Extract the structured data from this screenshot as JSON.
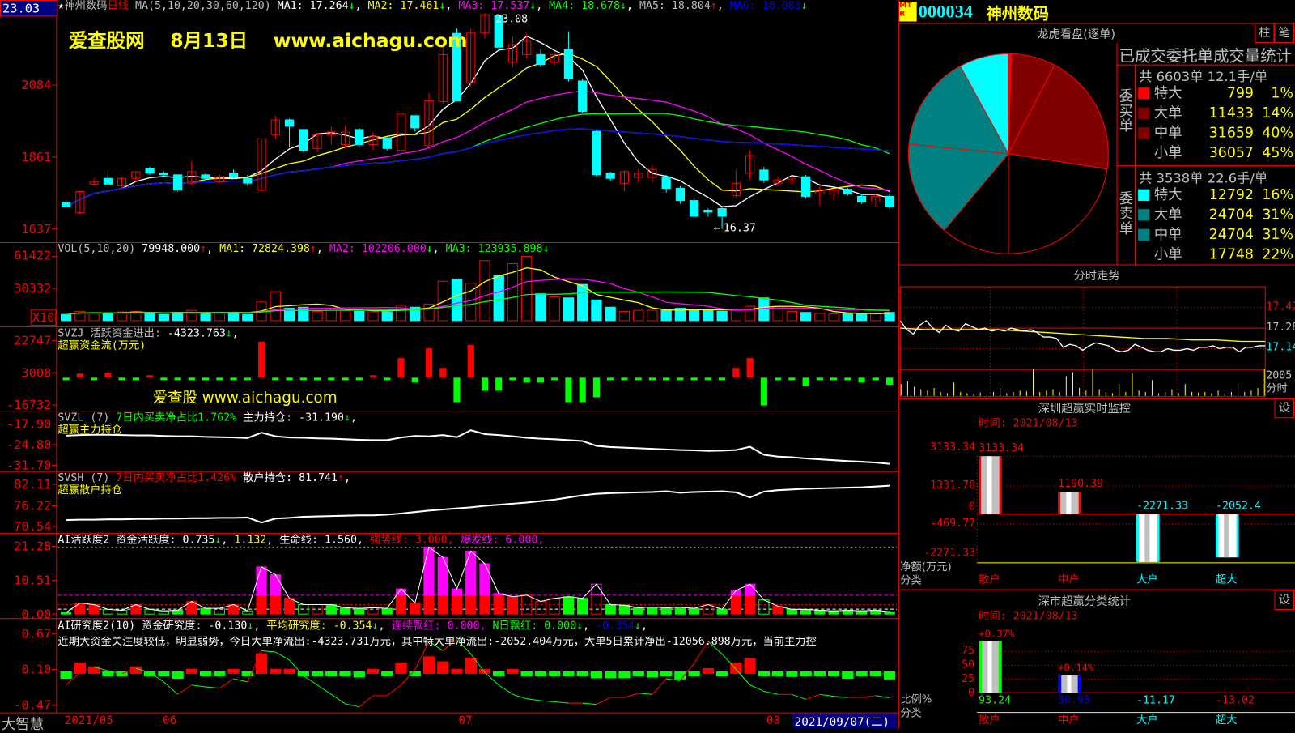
{
  "stock": {
    "code": "000034",
    "name": "神州数码",
    "logo": "MTR",
    "price_box": "23.03"
  },
  "main_header": [
    {
      "t": "★",
      "c": "#fff"
    },
    {
      "t": "神州数码",
      "c": "#c0c0c0"
    },
    {
      "t": "日线",
      "c": "#f00"
    },
    {
      "t": " MA(5,10,20,30,60,120) ",
      "c": "#c0c0c0"
    },
    {
      "t": "MA1: 17.264",
      "c": "#fff"
    },
    {
      "t": "↓",
      "c": "#0f0"
    },
    {
      "t": ", ",
      "c": "#fff"
    },
    {
      "t": "MA2: 17.461",
      "c": "#ff0"
    },
    {
      "t": "↓",
      "c": "#0f0"
    },
    {
      "t": ", ",
      "c": "#fff"
    },
    {
      "t": "MA3: 17.537",
      "c": "#f0f"
    },
    {
      "t": "↓",
      "c": "#0f0"
    },
    {
      "t": ", ",
      "c": "#fff"
    },
    {
      "t": "MA4: 18.678",
      "c": "#0f0"
    },
    {
      "t": "↓",
      "c": "#0f0"
    },
    {
      "t": ", ",
      "c": "#fff"
    },
    {
      "t": "MA5: 18.804",
      "c": "#c0c0c0"
    },
    {
      "t": "↑",
      "c": "#f00"
    },
    {
      "t": ", ",
      "c": "#fff"
    },
    {
      "t": "MA6: 18.083",
      "c": "#00f"
    },
    {
      "t": "↓",
      "c": "#0f0"
    }
  ],
  "watermark_top": "爱查股网　 8月13日　 www.aichagu.com",
  "watermark_mid": "爱查股 www.aichagu.com",
  "price_axis": [
    "2084",
    "1861",
    "1637"
  ],
  "high_label": "23.08",
  "low_label": "16.37",
  "candles": [
    [
      17.2,
      17.05,
      17.25,
      17.05
    ],
    [
      16.87,
      17.53,
      17.56,
      16.82
    ],
    [
      17.76,
      17.84,
      17.95,
      17.7
    ],
    [
      17.94,
      17.76,
      18.1,
      17.72
    ],
    [
      17.71,
      17.94,
      17.99,
      17.65
    ],
    [
      17.94,
      18.15,
      18.15,
      17.8
    ],
    [
      18.25,
      18.1,
      18.3,
      18.05
    ],
    [
      18.1,
      18.05,
      18.15,
      17.99
    ],
    [
      18.05,
      17.58,
      18.05,
      17.53
    ],
    [
      17.79,
      18.15,
      18.48,
      17.74
    ],
    [
      18.05,
      17.94,
      18.1,
      17.89
    ],
    [
      17.84,
      17.99,
      18.05,
      17.79
    ],
    [
      18.1,
      17.99,
      18.22,
      17.94
    ],
    [
      17.94,
      17.79,
      18.05,
      17.71
    ],
    [
      17.58,
      19.17,
      19.17,
      17.53
    ],
    [
      19.3,
      19.76,
      19.89,
      19.17
    ],
    [
      19.76,
      19.56,
      19.8,
      18.9
    ],
    [
      19.46,
      18.81,
      19.46,
      18.76
    ],
    [
      18.87,
      19.3,
      19.3,
      18.76
    ],
    [
      19.3,
      19.38,
      19.56,
      18.99
    ],
    [
      18.99,
      19.38,
      19.59,
      18.87
    ],
    [
      19.46,
      18.99,
      19.51,
      18.9
    ],
    [
      18.99,
      19.25,
      19.38,
      18.81
    ],
    [
      19.2,
      18.87,
      19.2,
      18.81
    ],
    [
      18.81,
      19.94,
      20.02,
      18.81
    ],
    [
      19.89,
      19.51,
      19.89,
      19.4
    ],
    [
      18.96,
      20.35,
      20.6,
      18.9
    ],
    [
      20.33,
      21.79,
      22.1,
      20.25
    ],
    [
      22.45,
      20.35,
      22.6,
      20.33
    ],
    [
      20.92,
      22.46,
      22.6,
      20.8
    ],
    [
      22.46,
      23.03,
      23.08,
      22.3
    ],
    [
      23.0,
      22.02,
      23.05,
      21.95
    ],
    [
      21.56,
      22.1,
      22.35,
      21.4
    ],
    [
      21.79,
      22.2,
      22.45,
      21.7
    ],
    [
      21.79,
      21.48,
      21.95,
      21.4
    ],
    [
      21.56,
      21.79,
      21.9,
      21.45
    ],
    [
      21.95,
      21.05,
      22.5,
      20.95
    ],
    [
      20.97,
      20.02,
      21.05,
      19.98
    ],
    [
      19.4,
      18.05,
      19.45,
      18.0
    ],
    [
      18.1,
      17.94,
      18.15,
      17.85
    ],
    [
      17.79,
      18.15,
      18.2,
      17.53
    ],
    [
      17.97,
      18.1,
      18.22,
      17.8
    ],
    [
      17.97,
      18.22,
      18.35,
      17.8
    ],
    [
      17.99,
      17.63,
      18.05,
      17.5
    ],
    [
      17.63,
      17.25,
      17.7,
      17.15
    ],
    [
      17.25,
      16.76,
      17.3,
      16.7
    ],
    [
      16.95,
      16.89,
      17.0,
      16.75
    ],
    [
      17.0,
      16.76,
      17.05,
      16.37
    ],
    [
      17.4,
      17.79,
      18.2,
      17.35
    ],
    [
      18.1,
      18.65,
      18.8,
      17.9
    ],
    [
      18.2,
      17.89,
      18.3,
      17.8
    ],
    [
      17.79,
      17.89,
      18.0,
      17.7
    ],
    [
      17.85,
      17.92,
      18.0,
      17.75
    ],
    [
      17.99,
      17.38,
      18.05,
      17.3
    ],
    [
      17.45,
      17.58,
      17.7,
      17.1
    ],
    [
      17.45,
      17.58,
      17.6,
      17.25
    ],
    [
      17.6,
      17.45,
      17.65,
      17.4
    ],
    [
      17.38,
      17.2,
      17.45,
      17.15
    ],
    [
      17.2,
      17.38,
      17.45,
      17.05
    ],
    [
      17.38,
      17.05,
      17.45,
      17.0
    ]
  ],
  "colors": {
    "up": "#ff0000",
    "down": "#00ffff",
    "ma": [
      "#ffffff",
      "#ffff00",
      "#ff00ff",
      "#00ff00",
      "#c0c0c0",
      "#0000ff"
    ]
  },
  "vol_header": [
    {
      "t": "VOL(5,10,20) ",
      "c": "#c0c0c0"
    },
    {
      "t": "79948.000",
      "c": "#fff"
    },
    {
      "t": "↑",
      "c": "#f00"
    },
    {
      "t": ", ",
      "c": "#fff"
    },
    {
      "t": "MA1: 72824.398",
      "c": "#ff0"
    },
    {
      "t": "↑",
      "c": "#f00"
    },
    {
      "t": ", ",
      "c": "#fff"
    },
    {
      "t": "MA2: 102206.000",
      "c": "#f0f"
    },
    {
      "t": "↓",
      "c": "#0f0"
    },
    {
      "t": ", ",
      "c": "#fff"
    },
    {
      "t": "MA3: 123935.898",
      "c": "#0f0"
    },
    {
      "t": "↓",
      "c": "#0f0"
    }
  ],
  "vol_axis": [
    "61422",
    "30332"
  ],
  "vol_unit": "X10",
  "volume": [
    6000,
    9000,
    8000,
    7000,
    8500,
    9000,
    7500,
    6000,
    8000,
    10000,
    6500,
    8000,
    8000,
    6000,
    18000,
    28000,
    12000,
    13000,
    9000,
    12000,
    9500,
    9000,
    8500,
    8500,
    15000,
    13000,
    16000,
    38000,
    40000,
    36000,
    58000,
    44000,
    55000,
    62000,
    26000,
    23000,
    22000,
    35000,
    20000,
    13000,
    9000,
    10000,
    10000,
    10000,
    12000,
    11000,
    10000,
    9000,
    10000,
    14000,
    22000,
    14000,
    9000,
    8000,
    7000,
    6500,
    7000,
    7000,
    6500,
    7994.8
  ],
  "svzj": {
    "header": [
      {
        "t": "SVZJ  活跃资金进出: ",
        "c": "#c0c0c0"
      },
      {
        "t": "-4323.763",
        "c": "#fff"
      },
      {
        "t": "↓",
        "c": "#0f0"
      },
      {
        "t": ",",
        "c": "#fff"
      }
    ],
    "sub": "超赢资金流(万元)",
    "axis": [
      "22747",
      "3008",
      "-16732"
    ],
    "values": [
      -500,
      2500,
      -800,
      1500,
      -600,
      -500,
      600,
      -700,
      -500,
      -400,
      -900,
      -600,
      -500,
      -800,
      22000,
      -700,
      -600,
      -800,
      -500,
      -700,
      -900,
      -1000,
      800,
      -800,
      12000,
      -3000,
      18000,
      6000,
      -15000,
      20000,
      -8000,
      -8000,
      -1200,
      -1500,
      -1300,
      -900,
      -15000,
      -15000,
      -12000,
      -1000,
      -800,
      -900,
      -600,
      -700,
      -800,
      -900,
      -700,
      -1000,
      6000,
      12000,
      -17000,
      -900,
      -700,
      -5000,
      -600,
      -800,
      -900,
      -1500,
      -700,
      -4323.763
    ]
  },
  "svzl": {
    "header": [
      {
        "t": "SVZL (7) ",
        "c": "#c0c0c0"
      },
      {
        "t": "7日内买卖净占比1.762%",
        "c": "#0f0"
      },
      {
        "t": " 主力持仓: -31.190",
        "c": "#fff"
      },
      {
        "t": "↓",
        "c": "#0f0"
      },
      {
        "t": ",",
        "c": "#fff"
      }
    ],
    "sub": "超赢主力持仓",
    "axis": [
      "-17.90",
      "-24.80",
      "-31.70"
    ],
    "values": [
      -21.8,
      -21.6,
      -21.5,
      -21.5,
      -21.6,
      -21.7,
      -21.7,
      -21.9,
      -22.0,
      -22.0,
      -22.2,
      -22.3,
      -22.4,
      -22.6,
      -20.8,
      -22.0,
      -22.4,
      -22.5,
      -22.7,
      -22.8,
      -23.0,
      -23.2,
      -23.3,
      -23.3,
      -22.4,
      -21.9,
      -22.0,
      -21.6,
      -22.3,
      -20.0,
      -21.3,
      -21.6,
      -22.0,
      -22.5,
      -22.8,
      -23.0,
      -23.3,
      -23.6,
      -25.2,
      -25.6,
      -25.8,
      -26.0,
      -26.2,
      -26.4,
      -26.6,
      -26.7,
      -26.9,
      -26.8,
      -26.6,
      -25.5,
      -28.2,
      -28.8,
      -29.0,
      -29.4,
      -29.7,
      -30.0,
      -30.3,
      -30.5,
      -30.8,
      -31.19
    ]
  },
  "svsh": {
    "header": [
      {
        "t": "SVSH (7) ",
        "c": "#c0c0c0"
      },
      {
        "t": "7日内买卖净占比1.426%",
        "c": "#f00"
      },
      {
        "t": " 散户持仓: 81.741",
        "c": "#fff"
      },
      {
        "t": "↑",
        "c": "#f00"
      },
      {
        "t": ",",
        "c": "#fff"
      }
    ],
    "sub": "超赢散户持仓",
    "axis": [
      "82.11",
      "76.22",
      "70.54"
    ],
    "values": [
      72.3,
      72.4,
      72.4,
      72.5,
      72.5,
      72.6,
      72.6,
      72.7,
      72.7,
      72.8,
      72.8,
      72.9,
      72.9,
      73.0,
      71.6,
      72.7,
      72.9,
      73.2,
      73.3,
      73.4,
      73.5,
      73.6,
      73.6,
      73.8,
      74.1,
      74.5,
      74.9,
      75.2,
      75.5,
      75.8,
      76.2,
      76.5,
      76.8,
      77.1,
      77.5,
      77.9,
      78.5,
      79.1,
      79.5,
      79.7,
      79.8,
      79.9,
      80.0,
      80.2,
      79.8,
      80.0,
      80.1,
      80.2,
      79.9,
      78.5,
      80.1,
      80.5,
      80.7,
      80.9,
      81.0,
      81.1,
      81.2,
      81.3,
      81.5,
      81.741
    ]
  },
  "ai_active": {
    "header": [
      {
        "t": "AI活跃度2 资金活跃度: 0.735",
        "c": "#fff"
      },
      {
        "t": "↓",
        "c": "#0f0"
      },
      {
        "t": ", ",
        "c": "#fff"
      },
      {
        "t": "1.132",
        "c": "#ff0"
      },
      {
        "t": ", 生命线: 1.560, ",
        "c": "#fff"
      },
      {
        "t": "强势线: 3.000, ",
        "c": "#f00"
      },
      {
        "t": "爆发线: 6.000,",
        "c": "#f0f"
      }
    ],
    "axis": [
      "21.28",
      "10.51",
      "0.00"
    ],
    "values": [
      0.5,
      3.5,
      3,
      1.5,
      1.2,
      3,
      1.5,
      1,
      1.2,
      4,
      1.8,
      1.8,
      3,
      1,
      15,
      12.5,
      5,
      3,
      3,
      3,
      2,
      1.8,
      2,
      1.8,
      8,
      3.5,
      21.28,
      18,
      8,
      20,
      16,
      6.5,
      5.5,
      6,
      4,
      5,
      5.5,
      5,
      9.5,
      3,
      2.8,
      2,
      2.2,
      2,
      2.2,
      1.8,
      3,
      1.5,
      7.5,
      9.5,
      4.5,
      2.5,
      1.5,
      1.5,
      1.2,
      1,
      1.2,
      1,
      1.2,
      0.735
    ],
    "types": [
      "g",
      "r",
      "r",
      "go",
      "go",
      "r",
      "go",
      "go",
      "g",
      "r",
      "g",
      "go",
      "r",
      "go",
      "r",
      "r",
      "r",
      "go",
      "ro",
      "g",
      "g",
      "g",
      "ro",
      "g",
      "r",
      "r",
      "r",
      "r",
      "r",
      "r",
      "r",
      "r",
      "r",
      "ro",
      "ro",
      "ro",
      "g",
      "g",
      "ro",
      "g",
      "g",
      "g",
      "g",
      "g",
      "g",
      "g",
      "ro",
      "g",
      "r",
      "r",
      "go",
      "r",
      "g",
      "g",
      "g",
      "g",
      "g",
      "g",
      "g",
      "g"
    ],
    "levels": {
      "life": 1.56,
      "strong": 3.0,
      "burst": 6.0,
      "top": 21.28
    }
  },
  "ai_research": {
    "header": [
      {
        "t": "AI研究度2(10) 资金研究度: -0.130",
        "c": "#fff"
      },
      {
        "t": "↓",
        "c": "#0f0"
      },
      {
        "t": ", ",
        "c": "#fff"
      },
      {
        "t": "平均研究度: -0.354",
        "c": "#ff0"
      },
      {
        "t": "↓",
        "c": "#0f0"
      },
      {
        "t": ", ",
        "c": "#fff"
      },
      {
        "t": "连续飘红: 0.000, ",
        "c": "#f0f"
      },
      {
        "t": "N日飘红: 0.000",
        "c": "#0f0"
      },
      {
        "t": "↓",
        "c": "#0f0"
      },
      {
        "t": ", ",
        "c": "#fff"
      },
      {
        "t": "-0.354",
        "c": "#00f"
      },
      {
        "t": "↓",
        "c": "#0f0"
      },
      {
        "t": ",",
        "c": "#fff"
      }
    ],
    "comment": "近期大资金关注度较低，明显弱势，今日大单净流出:-4323.731万元，其中特大单净流出:-2052.404万元，大单5日累计净出-12056.898万元，当前主力控",
    "axis": [
      "0.67",
      "0.10",
      "-0.47"
    ],
    "bars": [
      -0.12,
      0.18,
      0.12,
      -0.05,
      -0.03,
      0.12,
      -0.02,
      -0.05,
      -0.12,
      0.08,
      -0.04,
      -0.03,
      0.08,
      -0.08,
      0.33,
      0.08,
      0.02,
      -0.07,
      -0.04,
      -0.04,
      -0.08,
      -0.1,
      0.05,
      -0.06,
      0.18,
      -0.02,
      0.28,
      0.2,
      0.03,
      0.26,
      0.08,
      -0.04,
      0.03,
      -0.05,
      -0.05,
      -0.03,
      -0.07,
      -0.07,
      -0.11,
      -0.11,
      -0.11,
      -0.04,
      -0.1,
      -0.05,
      -0.13,
      -0.04,
      0.09,
      -0.07,
      0.18,
      0.25,
      -0.06,
      -0.03,
      -0.09,
      -0.05,
      -0.07,
      -0.07,
      -0.12,
      -0.05,
      -0.06,
      -0.13
    ],
    "line": [
      -0.15,
      0.05,
      0.14,
      0.08,
      0.03,
      0.12,
      0.05,
      -0.1,
      -0.3,
      -0.15,
      -0.18,
      -0.2,
      -0.05,
      -0.1,
      0.4,
      0.38,
      0.25,
      0.0,
      -0.15,
      -0.3,
      -0.45,
      -0.5,
      -0.32,
      -0.32,
      -0.15,
      0.1,
      0.55,
      0.4,
      0.58,
      0.35,
      0.05,
      -0.15,
      -0.3,
      -0.37,
      -0.4,
      -0.42,
      -0.44,
      -0.44,
      -0.46,
      -0.35,
      -0.35,
      -0.28,
      -0.3,
      -0.05,
      -0.08,
      0.2,
      0.55,
      0.35,
      0.1,
      -0.15,
      -0.25,
      -0.3,
      -0.3,
      -0.38,
      -0.3,
      -0.33,
      -0.35,
      -0.35,
      -0.32,
      -0.354
    ]
  },
  "date_bar": {
    "brand": "大智慧",
    "labels": [
      "2021/05",
      "06",
      "07",
      "08"
    ],
    "cursor_date": "2021/09/07(二)"
  },
  "order_panel": {
    "title": "龙虎看盘(逐单)",
    "btn_bar": "柱",
    "btn_tick": "笔",
    "table_title": "已成交委托单成交量统计",
    "buy": {
      "side": "委买单",
      "summary": "共 6603单 12.1手/单",
      "rows": [
        {
          "label": "特大",
          "vol": "799",
          "pct": "1%",
          "color": "#ff0000"
        },
        {
          "label": "大单",
          "vol": "11433",
          "pct": "14%",
          "color": "#800000"
        },
        {
          "label": "中单",
          "vol": "31659",
          "pct": "40%",
          "color": "#800000"
        },
        {
          "label": "小单",
          "vol": "36057",
          "pct": "45%",
          "color": "#000000"
        }
      ]
    },
    "sell": {
      "side": "委卖单",
      "summary": "共 3538单 22.6手/单",
      "rows": [
        {
          "label": "特大",
          "vol": "12792",
          "pct": "16%",
          "color": "#00ffff"
        },
        {
          "label": "大单",
          "vol": "24704",
          "pct": "31%",
          "color": "#008080"
        },
        {
          "label": "中单",
          "vol": "24704",
          "pct": "31%",
          "color": "#008080"
        },
        {
          "label": "小单",
          "vol": "17748",
          "pct": "22%",
          "color": "#000000"
        }
      ]
    }
  },
  "intraday": {
    "title": "分时走势",
    "axis": [
      "17.42",
      "17.28",
      "17.14"
    ],
    "vol_axis": "2005",
    "vol_label": "分时",
    "price": [
      17.33,
      17.27,
      17.24,
      17.3,
      17.33,
      17.28,
      17.25,
      17.3,
      17.27,
      17.26,
      17.31,
      17.29,
      17.27,
      17.28,
      17.26,
      17.27,
      17.26,
      17.28,
      17.27,
      17.26,
      17.27,
      17.25,
      17.22,
      17.22,
      17.21,
      17.15,
      17.17,
      17.16,
      17.13,
      17.16,
      17.18,
      17.17,
      17.16,
      17.13,
      17.12,
      17.13,
      17.17,
      17.15,
      17.13,
      17.12,
      17.12,
      17.14,
      17.13,
      17.13,
      17.14,
      17.13,
      17.15,
      17.15,
      17.16,
      17.14,
      17.15,
      17.15,
      17.12,
      17.15,
      17.15,
      17.16,
      17.16
    ],
    "avg": [
      17.28,
      17.27,
      17.27,
      17.27,
      17.27,
      17.26,
      17.25,
      17.24,
      17.23,
      17.22,
      17.21,
      17.21,
      17.2,
      17.2,
      17.19,
      17.19
    ],
    "volume": [
      900,
      1100,
      700,
      500,
      400,
      600,
      300,
      200,
      1000,
      300,
      200,
      150,
      250,
      200,
      300,
      600,
      200,
      300,
      400,
      350,
      2000,
      300,
      400,
      500,
      300,
      1500,
      1800,
      600,
      400,
      2000,
      500,
      300,
      200,
      900,
      300,
      1700,
      400,
      300,
      1200,
      200,
      300,
      500,
      200,
      900,
      300,
      250,
      300,
      200,
      400,
      200,
      300,
      1000,
      300,
      400,
      600,
      2005
    ]
  },
  "sz_monitor": {
    "title": "深圳超赢实时监控",
    "btn": "设",
    "time": "时间: 2021/08/13",
    "axis": [
      "3133.34",
      "1331.78",
      "0",
      "-469.77",
      "-2271.33"
    ],
    "bars": [
      {
        "cat": "散户",
        "value": 3133.34,
        "label": "3133.34",
        "color": "#ff0000"
      },
      {
        "cat": "中户",
        "value": 1190.39,
        "label": "1190.39",
        "color": "#ff0000"
      },
      {
        "cat": "大户",
        "value": -2271.33,
        "label": "-2271.33",
        "color": "#00ffff"
      },
      {
        "cat": "超大",
        "value": -2052.4,
        "label": "-2052.4",
        "color": "#00ffff"
      }
    ],
    "ylabel": "净额(万元)",
    "xlabel": "分类"
  },
  "sz_stats": {
    "title": "深市超赢分类统计",
    "btn": "设",
    "time": "时间: 2021/08/13",
    "axis": [
      "75",
      "50",
      "25",
      "0"
    ],
    "bars": [
      {
        "cat": "散户",
        "value": 93.24,
        "label": "93.24",
        "change": "+0.37%",
        "color": "#00ff00",
        "catcolor": "#ff0000"
      },
      {
        "cat": "中户",
        "value": 30.95,
        "label": "30.95",
        "change": "+0.14%",
        "color": "#0000ff",
        "catcolor": "#ff0000"
      },
      {
        "cat": "大户",
        "value": -11.17,
        "label": "-11.17",
        "color": "#00ffff",
        "catcolor": "#00ffff"
      },
      {
        "cat": "超大",
        "value": -13.02,
        "label": "-13.02",
        "color": "#ff0000",
        "catcolor": "#00ffff"
      }
    ],
    "ylabel": "比例%",
    "xlabel": "分类"
  }
}
